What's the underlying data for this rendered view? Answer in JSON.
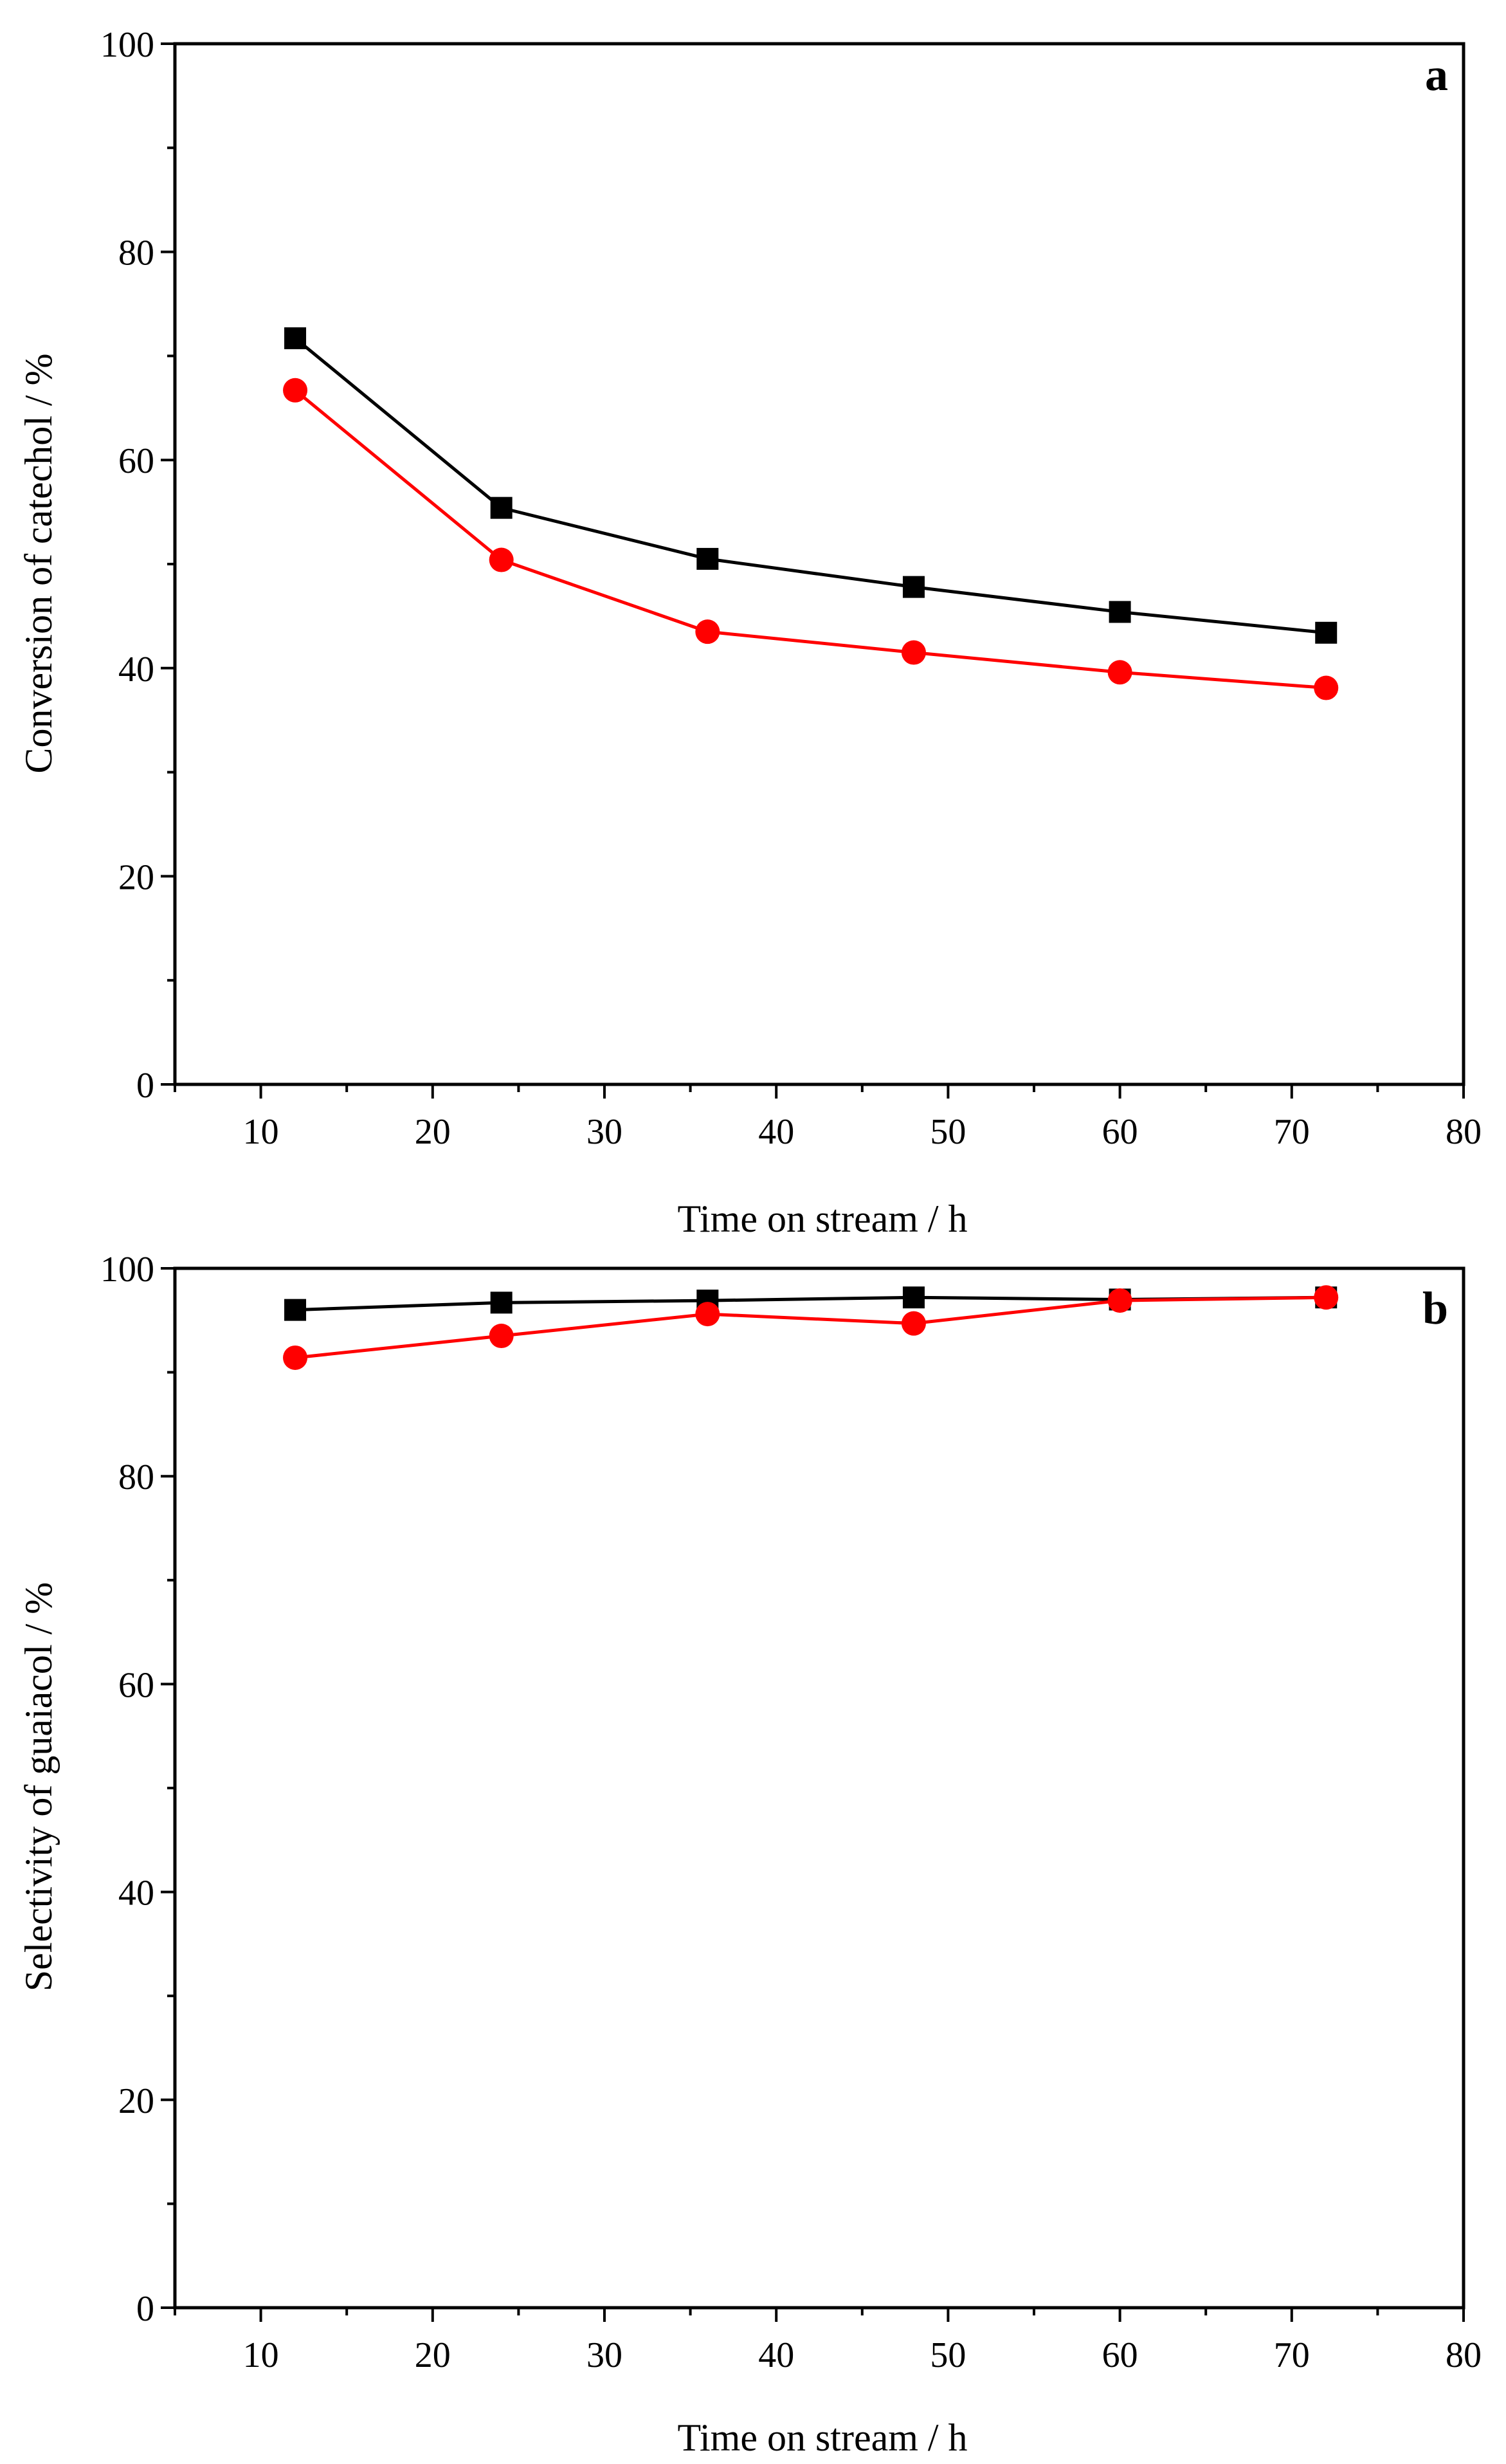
{
  "chart_data": [
    {
      "type": "line",
      "panel_label": "a",
      "xlabel": "Time on stream / h",
      "ylabel": "Conversion of catechol / %",
      "xlim": [
        5,
        80
      ],
      "ylim": [
        0,
        100
      ],
      "xticks": [
        10,
        20,
        30,
        40,
        50,
        60,
        70,
        80
      ],
      "yticks": [
        0,
        20,
        40,
        60,
        80,
        100
      ],
      "x": [
        12,
        24,
        36,
        48,
        60,
        72
      ],
      "series": [
        {
          "name": "black squares",
          "marker": "square",
          "color": "#000000",
          "values": [
            71.7,
            55.4,
            50.5,
            47.8,
            45.4,
            43.4
          ]
        },
        {
          "name": "red circles",
          "marker": "circle",
          "color": "#ff0000",
          "values": [
            66.7,
            50.4,
            43.5,
            41.5,
            39.6,
            38.1
          ]
        }
      ]
    },
    {
      "type": "line",
      "panel_label": "b",
      "xlabel": "Time on stream / h",
      "ylabel": "Selectivity of guaiacol / %",
      "xlim": [
        5,
        80
      ],
      "ylim": [
        0,
        100
      ],
      "xticks": [
        10,
        20,
        30,
        40,
        50,
        60,
        70,
        80
      ],
      "yticks": [
        0,
        20,
        40,
        60,
        80,
        100
      ],
      "x": [
        12,
        24,
        36,
        48,
        60,
        72
      ],
      "series": [
        {
          "name": "black squares",
          "marker": "square",
          "color": "#000000",
          "values": [
            96.0,
            96.7,
            96.9,
            97.2,
            97.0,
            97.2
          ]
        },
        {
          "name": "red circles",
          "marker": "circle",
          "color": "#ff0000",
          "values": [
            91.4,
            93.5,
            95.6,
            94.7,
            96.9,
            97.2
          ]
        }
      ]
    }
  ]
}
